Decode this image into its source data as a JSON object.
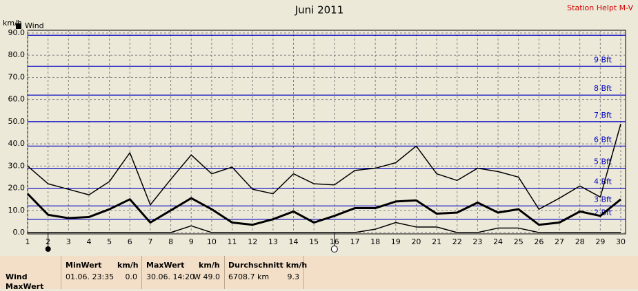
{
  "chart_data": {
    "type": "line",
    "title": "Juni 2011",
    "subtitle": "Station Helpt M-V",
    "ylabel": "km/h",
    "legend_label": "Wind",
    "x": [
      1,
      2,
      3,
      4,
      5,
      6,
      7,
      8,
      9,
      10,
      11,
      12,
      13,
      14,
      15,
      16,
      17,
      18,
      19,
      20,
      21,
      22,
      23,
      24,
      25,
      26,
      27,
      28,
      29,
      30
    ],
    "series": [
      {
        "color": "#000000",
        "linewidth": 1.5,
        "values": [
          30,
          22,
          19.5,
          17,
          23,
          36,
          12.5,
          24,
          35,
          26.5,
          29.5,
          19.5,
          17.5,
          26.5,
          22,
          21.5,
          28,
          29,
          31.5,
          39,
          26.5,
          23.5,
          29,
          27.5,
          25,
          10.5,
          15.5,
          21,
          16,
          49
        ]
      },
      {
        "color": "#000000",
        "linewidth": 3,
        "values": [
          17.5,
          8,
          6.5,
          7,
          10.5,
          15,
          4.5,
          10,
          15.5,
          10.5,
          4.5,
          3.5,
          6,
          9.5,
          4.5,
          7.5,
          11,
          11,
          14,
          14.5,
          8.5,
          9,
          13.5,
          9,
          10.5,
          3.5,
          4.5,
          9.5,
          7.5,
          15
        ]
      },
      {
        "color": "#000000",
        "linewidth": 1.5,
        "values": [
          0,
          0,
          0,
          0,
          0,
          0,
          0,
          0,
          3,
          0,
          0,
          0,
          0,
          0,
          0,
          0,
          0,
          1.5,
          4.5,
          2.5,
          2.5,
          0,
          0,
          2,
          2,
          0,
          0,
          0,
          0,
          0
        ]
      }
    ],
    "xlim": [
      1,
      30
    ],
    "xticks": [
      1,
      2,
      3,
      4,
      5,
      6,
      7,
      8,
      9,
      10,
      11,
      12,
      13,
      14,
      15,
      16,
      17,
      18,
      19,
      20,
      21,
      22,
      23,
      24,
      25,
      26,
      27,
      28,
      29,
      30
    ],
    "ylim": [
      0,
      90
    ],
    "yticks": [
      {
        "value": 0,
        "label": "0.0"
      },
      {
        "value": 10,
        "label": "10.0"
      },
      {
        "value": 20,
        "label": "20.0"
      },
      {
        "value": 30,
        "label": "30.0"
      },
      {
        "value": 40,
        "label": "40.0"
      },
      {
        "value": 50,
        "label": "50.0"
      },
      {
        "value": 60,
        "label": "60.0"
      },
      {
        "value": 70,
        "label": "70.0"
      },
      {
        "value": 80,
        "label": "80.0"
      },
      {
        "value": 90,
        "label": "90.0"
      }
    ],
    "grid": true,
    "grid_color": "#808080",
    "reference_color": "#0000c0",
    "reference_lines": [
      {
        "value": 6,
        "label": "2 Bft"
      },
      {
        "value": 12,
        "label": "3 Bft"
      },
      {
        "value": 20,
        "label": "4 Bft"
      },
      {
        "value": 29,
        "label": "5 Bft"
      },
      {
        "value": 39,
        "label": "6 Bft"
      },
      {
        "value": 50,
        "label": "7 Bft"
      },
      {
        "value": 62,
        "label": "8 Bft"
      },
      {
        "value": 75,
        "label": "9 Bft"
      },
      {
        "value": 89
      }
    ]
  },
  "stats": {
    "row_labels": [
      "Wind",
      "MaxWert"
    ],
    "min": {
      "header": "MinWert",
      "unit": "km/h",
      "time": "01.06.  23:35",
      "value": "0.0"
    },
    "max": {
      "header": "MaxWert",
      "unit": "km/h",
      "time": "30.06.  14:20",
      "value": "W 49.0"
    },
    "avg": {
      "header": "Durchschnitt km/h",
      "distance": "6708.7 km",
      "value": "9.3"
    }
  }
}
